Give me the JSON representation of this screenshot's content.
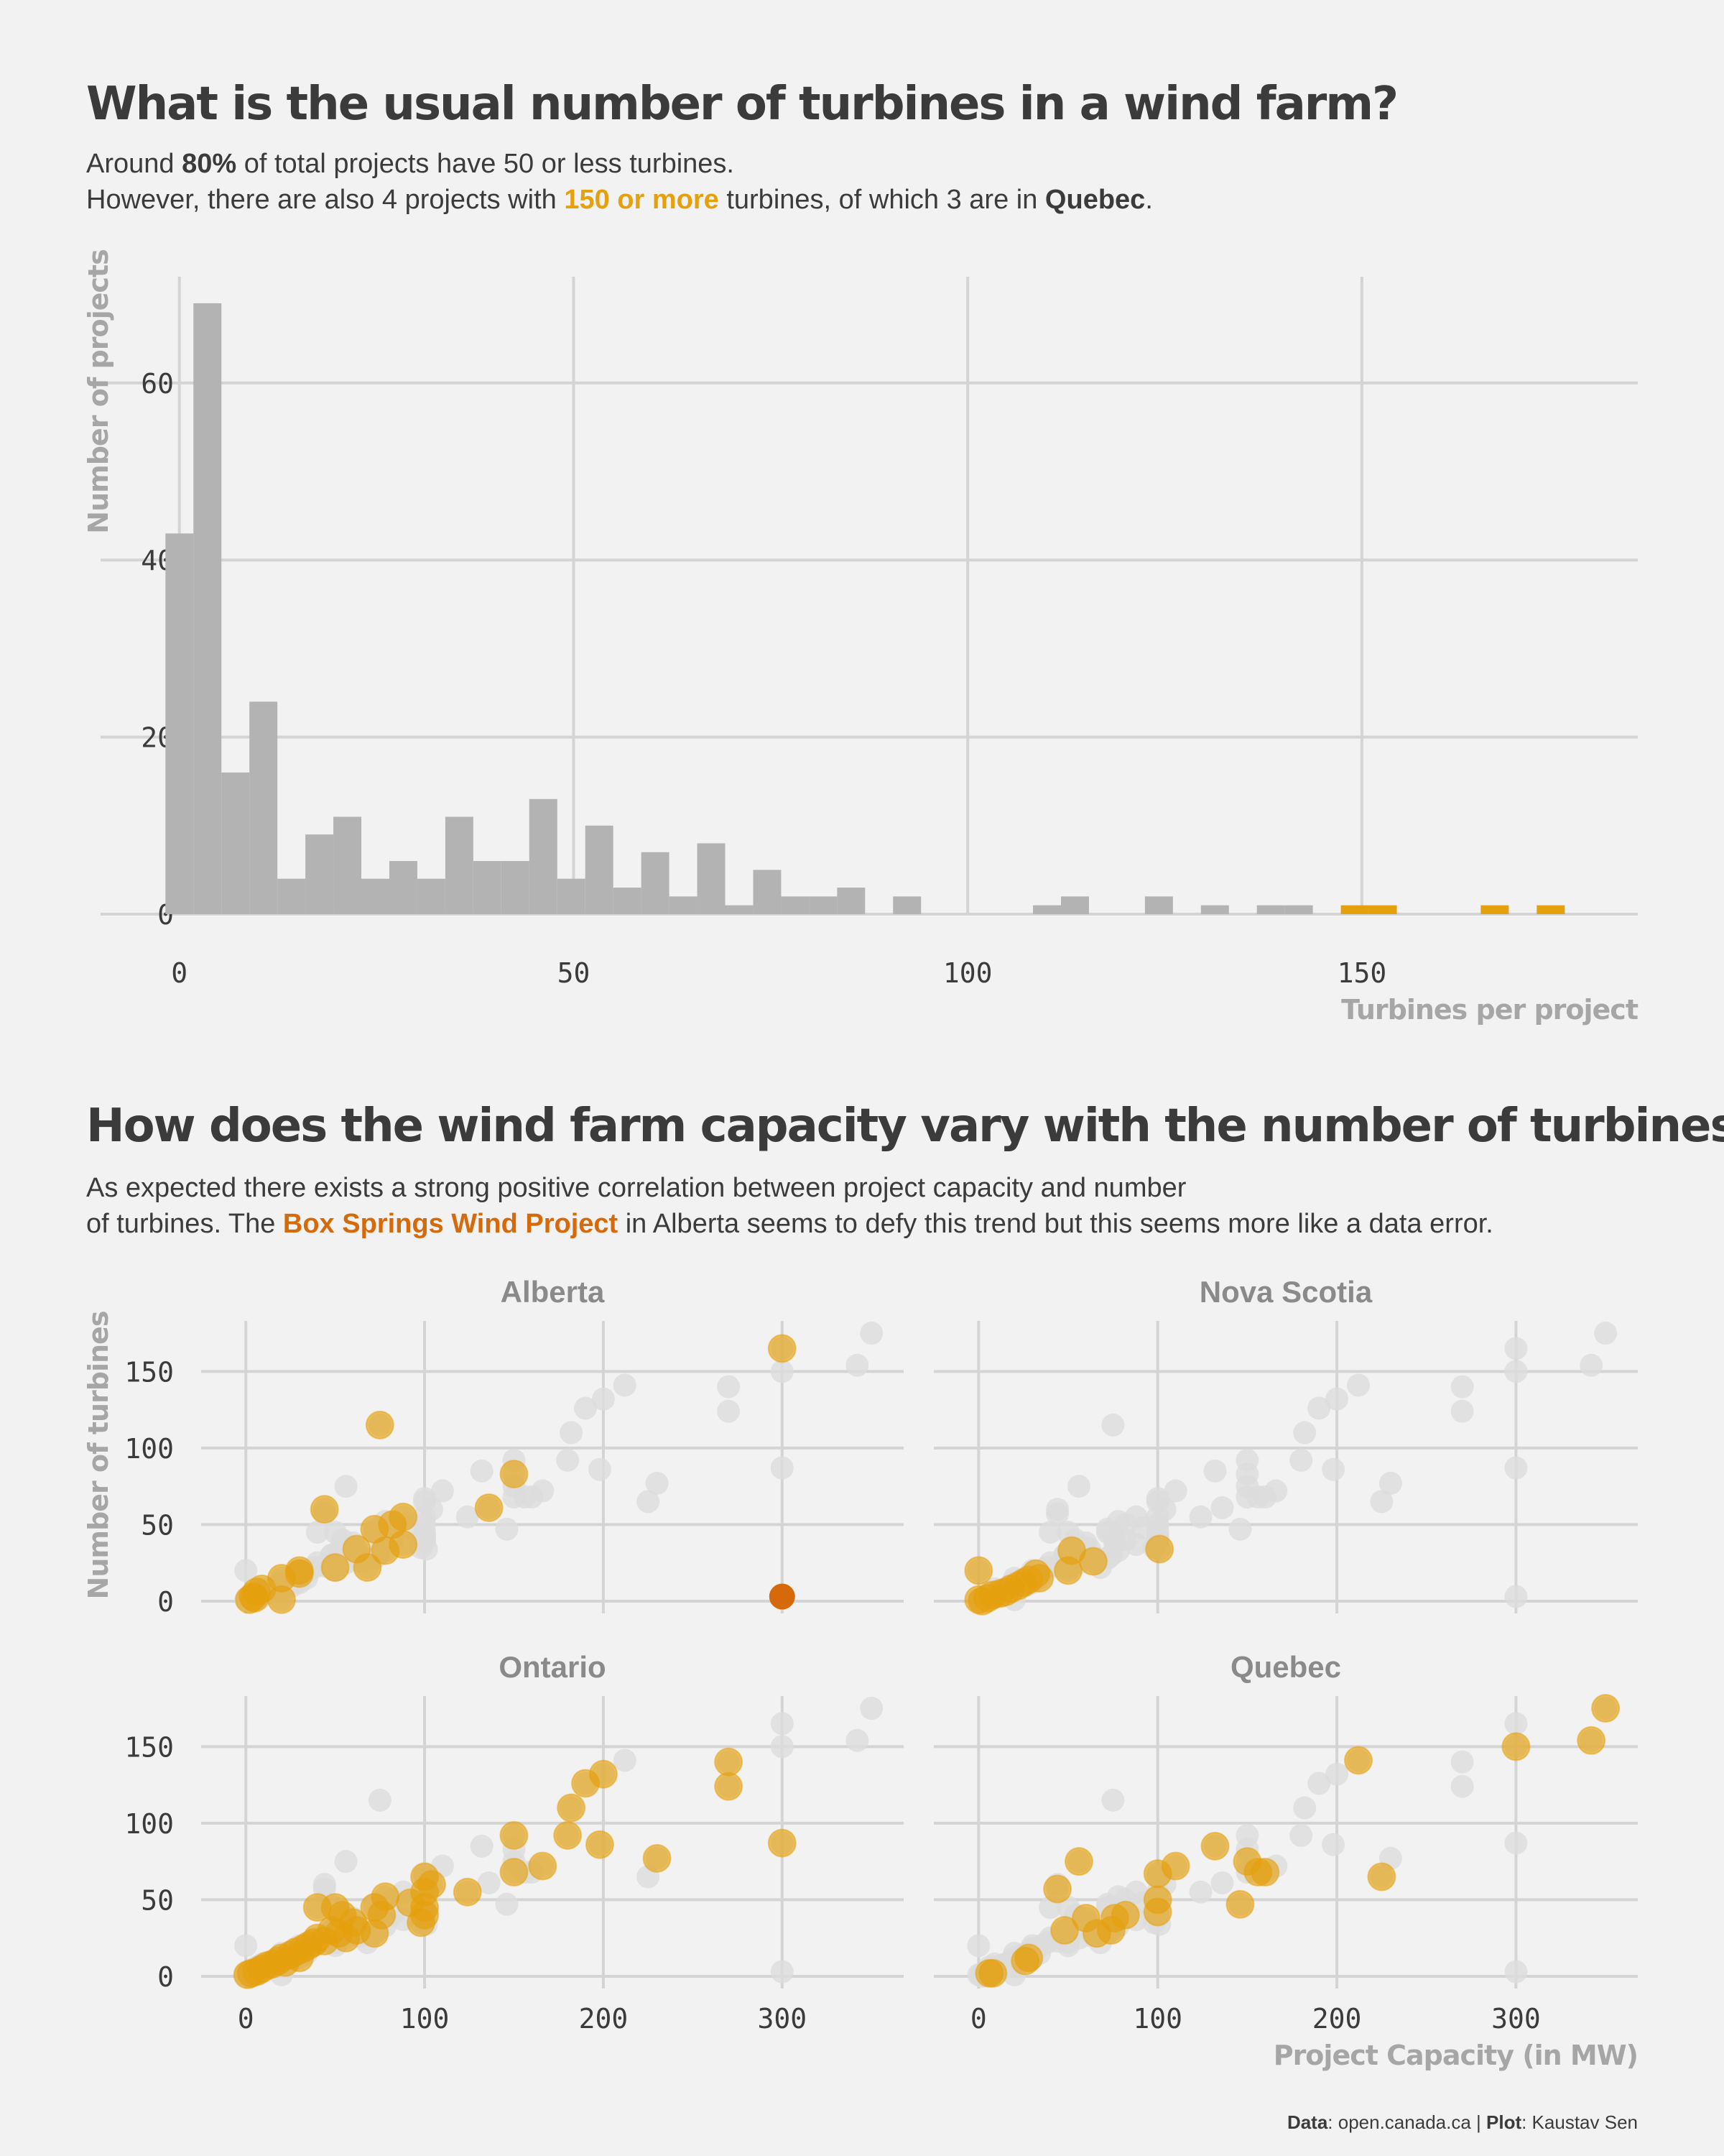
{
  "title1": "What is the usual number of turbines in a wind farm?",
  "sub1": {
    "l1a": "Around ",
    "l1b": "80%",
    "l1c": " of total projects have 50 or less turbines.",
    "l2a": "However, there are also 4 projects with ",
    "l2b": "150 or more",
    "l2c": " turbines, of which 3 are in ",
    "l2d": "Quebec",
    "l2e": "."
  },
  "title2": "How does the wind farm capacity vary with the number of turbines?",
  "sub2": {
    "l1": "As expected there exists a strong positive correlation between project capacity and number",
    "l2a": "of turbines. The ",
    "l2b": "Box Springs Wind Project",
    "l2c": " in Alberta seems to defy this trend but this seems more like a data error."
  },
  "caption": {
    "a": "Data",
    "b": ": open.canada.ca | ",
    "c": "Plot",
    "d": ": Kaustav Sen"
  },
  "colors": {
    "bar": "#b3b3b3",
    "highlight": "#e5a00d",
    "outlier": "#d66a0a",
    "background_point": "#dcdcdc",
    "grid": "#d4d4d4",
    "text": "#3b3b3b",
    "axis_title": "#a6a6a6"
  },
  "chart_data": [
    {
      "type": "bar",
      "subtype": "histogram",
      "xlabel": "Turbines per project",
      "ylabel": "Number of projects",
      "xlim": [
        -10,
        185
      ],
      "ylim": [
        0,
        72
      ],
      "xticks": [
        "0",
        "50",
        "100",
        "150"
      ],
      "yticks": [
        "0",
        "20",
        "40",
        "60"
      ],
      "bin_width": 3.55,
      "bins_start": [
        -1.77,
        1.78,
        5.33,
        8.88,
        12.43,
        15.98,
        19.53,
        23.08,
        26.63,
        30.18,
        33.73,
        37.28,
        40.83,
        44.38,
        47.93,
        51.48,
        55.03,
        58.58,
        62.13,
        65.68,
        69.23,
        72.78,
        76.33,
        79.88,
        83.43,
        90.53,
        108.28,
        111.83,
        122.48,
        129.58,
        136.68,
        140.23,
        147.33,
        150.88,
        165.08,
        172.18
      ],
      "counts": [
        43,
        69,
        16,
        24,
        4,
        9,
        11,
        4,
        6,
        4,
        11,
        6,
        6,
        13,
        4,
        10,
        3,
        7,
        2,
        8,
        1,
        5,
        2,
        2,
        3,
        2,
        1,
        2,
        2,
        1,
        1,
        1,
        1,
        1,
        1,
        1
      ],
      "highlight_from": 147
    },
    {
      "type": "scatter",
      "facets": [
        "Alberta",
        "Nova Scotia",
        "Ontario",
        "Quebec"
      ],
      "xlabel": "Project Capacity (in MW)",
      "ylabel": "Number of turbines",
      "xlim": [
        -25,
        368
      ],
      "ylim": [
        -8,
        183
      ],
      "xticks": [
        "0",
        "100",
        "200",
        "300"
      ],
      "yticks": [
        "0",
        "50",
        "100",
        "150"
      ],
      "points": {
        "Alberta": [
          [
            2,
            1
          ],
          [
            4,
            3
          ],
          [
            6,
            6
          ],
          [
            9,
            8
          ],
          [
            5,
            2
          ],
          [
            20,
            15
          ],
          [
            20,
            1
          ],
          [
            30,
            20
          ],
          [
            30,
            18
          ],
          [
            50,
            22
          ],
          [
            44,
            60
          ],
          [
            62,
            34
          ],
          [
            68,
            22
          ],
          [
            72,
            47
          ],
          [
            78,
            33
          ],
          [
            82,
            50
          ],
          [
            88,
            37
          ],
          [
            88,
            55
          ],
          [
            75,
            115
          ],
          [
            136,
            61
          ],
          [
            150,
            83
          ],
          [
            300,
            165
          ]
        ],
        "Nova Scotia": [
          [
            0,
            1
          ],
          [
            2,
            0
          ],
          [
            5,
            2
          ],
          [
            8,
            4
          ],
          [
            12,
            5
          ],
          [
            15,
            6
          ],
          [
            18,
            8
          ],
          [
            22,
            10
          ],
          [
            25,
            12
          ],
          [
            28,
            14
          ],
          [
            32,
            18
          ],
          [
            34,
            15
          ],
          [
            0,
            20
          ],
          [
            50,
            20
          ],
          [
            52,
            33
          ],
          [
            64,
            26
          ],
          [
            101,
            34
          ]
        ],
        "Ontario": [
          [
            1,
            1
          ],
          [
            3,
            2
          ],
          [
            6,
            3
          ],
          [
            9,
            5
          ],
          [
            12,
            7
          ],
          [
            15,
            8
          ],
          [
            18,
            10
          ],
          [
            20,
            12
          ],
          [
            22,
            9
          ],
          [
            25,
            14
          ],
          [
            28,
            16
          ],
          [
            30,
            12
          ],
          [
            32,
            18
          ],
          [
            35,
            20
          ],
          [
            38,
            22
          ],
          [
            40,
            25
          ],
          [
            40,
            45
          ],
          [
            44,
            23
          ],
          [
            48,
            30
          ],
          [
            50,
            45
          ],
          [
            52,
            28
          ],
          [
            54,
            40
          ],
          [
            56,
            25
          ],
          [
            60,
            35
          ],
          [
            62,
            30
          ],
          [
            72,
            28
          ],
          [
            72,
            45
          ],
          [
            76,
            40
          ],
          [
            78,
            52
          ],
          [
            92,
            48
          ],
          [
            98,
            35
          ],
          [
            100,
            40
          ],
          [
            100,
            55
          ],
          [
            100,
            65
          ],
          [
            100,
            45
          ],
          [
            104,
            60
          ],
          [
            124,
            55
          ],
          [
            150,
            68
          ],
          [
            150,
            92
          ],
          [
            166,
            72
          ],
          [
            180,
            92
          ],
          [
            182,
            110
          ],
          [
            190,
            126
          ],
          [
            198,
            86
          ],
          [
            200,
            132
          ],
          [
            230,
            77
          ],
          [
            270,
            140
          ],
          [
            270,
            124
          ],
          [
            300,
            87
          ]
        ],
        "Quebec": [
          [
            6,
            2
          ],
          [
            8,
            2
          ],
          [
            26,
            10
          ],
          [
            28,
            12
          ],
          [
            44,
            57
          ],
          [
            48,
            30
          ],
          [
            56,
            75
          ],
          [
            60,
            38
          ],
          [
            66,
            28
          ],
          [
            74,
            30
          ],
          [
            76,
            38
          ],
          [
            82,
            40
          ],
          [
            100,
            50
          ],
          [
            100,
            67
          ],
          [
            100,
            42
          ],
          [
            110,
            72
          ],
          [
            132,
            85
          ],
          [
            146,
            47
          ],
          [
            150,
            75
          ],
          [
            156,
            68
          ],
          [
            160,
            68
          ],
          [
            212,
            141
          ],
          [
            225,
            65
          ],
          [
            300,
            150
          ],
          [
            342,
            154
          ],
          [
            350,
            175
          ]
        ]
      },
      "outlier": {
        "facet": "Alberta",
        "x": 300,
        "y": 3,
        "label": "Box Springs Wind Project"
      }
    }
  ]
}
